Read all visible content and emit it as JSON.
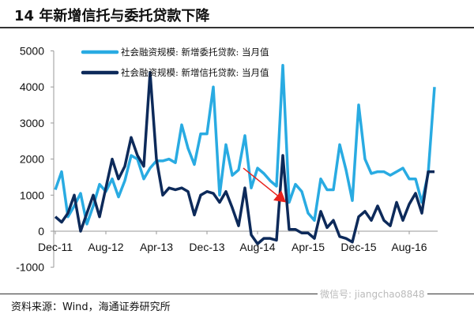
{
  "title": "14 年新增信托与委托贷款下降",
  "source": "资料来源：Wind，海通证券研究所",
  "watermark": "微信号: jiangchao8848",
  "chart_data": {
    "type": "line",
    "title": "",
    "xlabel": "",
    "ylabel": "",
    "ylim": [
      -1000,
      5000
    ],
    "yticks": [
      "-1000",
      "0",
      "1000",
      "2000",
      "3000",
      "4000",
      "5000"
    ],
    "xtick_labels": [
      "Dec-11",
      "Aug-12",
      "Apr-13",
      "Dec-13",
      "Aug-14",
      "Apr-15",
      "Dec-15",
      "Aug-16"
    ],
    "grid": false,
    "legend_position": "top",
    "x": [
      "2011-12",
      "2012-01",
      "2012-02",
      "2012-03",
      "2012-04",
      "2012-05",
      "2012-06",
      "2012-07",
      "2012-08",
      "2012-09",
      "2012-10",
      "2012-11",
      "2012-12",
      "2013-01",
      "2013-02",
      "2013-03",
      "2013-04",
      "2013-05",
      "2013-06",
      "2013-07",
      "2013-08",
      "2013-09",
      "2013-10",
      "2013-11",
      "2013-12",
      "2014-01",
      "2014-02",
      "2014-03",
      "2014-04",
      "2014-05",
      "2014-06",
      "2014-07",
      "2014-08",
      "2014-09",
      "2014-10",
      "2014-11",
      "2014-12",
      "2015-01",
      "2015-02",
      "2015-03",
      "2015-04",
      "2015-05",
      "2015-06",
      "2015-07",
      "2015-08",
      "2015-09",
      "2015-10",
      "2015-11",
      "2015-12",
      "2016-01",
      "2016-02",
      "2016-03",
      "2016-04",
      "2016-05",
      "2016-06",
      "2016-07",
      "2016-08",
      "2016-09",
      "2016-10",
      "2016-11",
      "2016-12"
    ],
    "series": [
      {
        "name": "社会融资规模: 新增委托贷款: 当月值",
        "color": "#29abe2",
        "values": [
          1150,
          1650,
          400,
          700,
          1050,
          200,
          700,
          1300,
          1100,
          1450,
          950,
          1400,
          2100,
          2000,
          1450,
          1750,
          1950,
          1950,
          2000,
          1900,
          2950,
          2300,
          1850,
          2700,
          2700,
          4000,
          1000,
          2400,
          1550,
          1700,
          2650,
          1200,
          1750,
          1600,
          1400,
          1250,
          4600,
          800,
          1300,
          1100,
          500,
          300,
          1450,
          1150,
          1150,
          2400,
          1700,
          850,
          3500,
          2000,
          1600,
          1650,
          1650,
          1550,
          1650,
          1750,
          1450,
          1450,
          800,
          1600,
          4000
        ]
      },
      {
        "name": "社会融资规模: 新增信托贷款: 当月值",
        "color": "#0d2a5a",
        "values": [
          400,
          250,
          500,
          1000,
          0,
          500,
          1000,
          400,
          1200,
          2000,
          1450,
          1800,
          2600,
          2100,
          1800,
          4400,
          2000,
          1000,
          1200,
          1150,
          1200,
          1100,
          450,
          1000,
          1100,
          1050,
          800,
          1100,
          650,
          150,
          1200,
          -100,
          -350,
          -200,
          -200,
          -250,
          2100,
          50,
          50,
          -50,
          -50,
          -200,
          550,
          100,
          300,
          -150,
          -200,
          -300,
          400,
          550,
          300,
          700,
          300,
          150,
          800,
          300,
          750,
          1050,
          500,
          1650,
          1650
        ]
      }
    ],
    "annotation": {
      "type": "arrow",
      "color": "#e8221c",
      "from": [
        "2014-06",
        1750
      ],
      "to": [
        "2014-12",
        800
      ]
    }
  }
}
